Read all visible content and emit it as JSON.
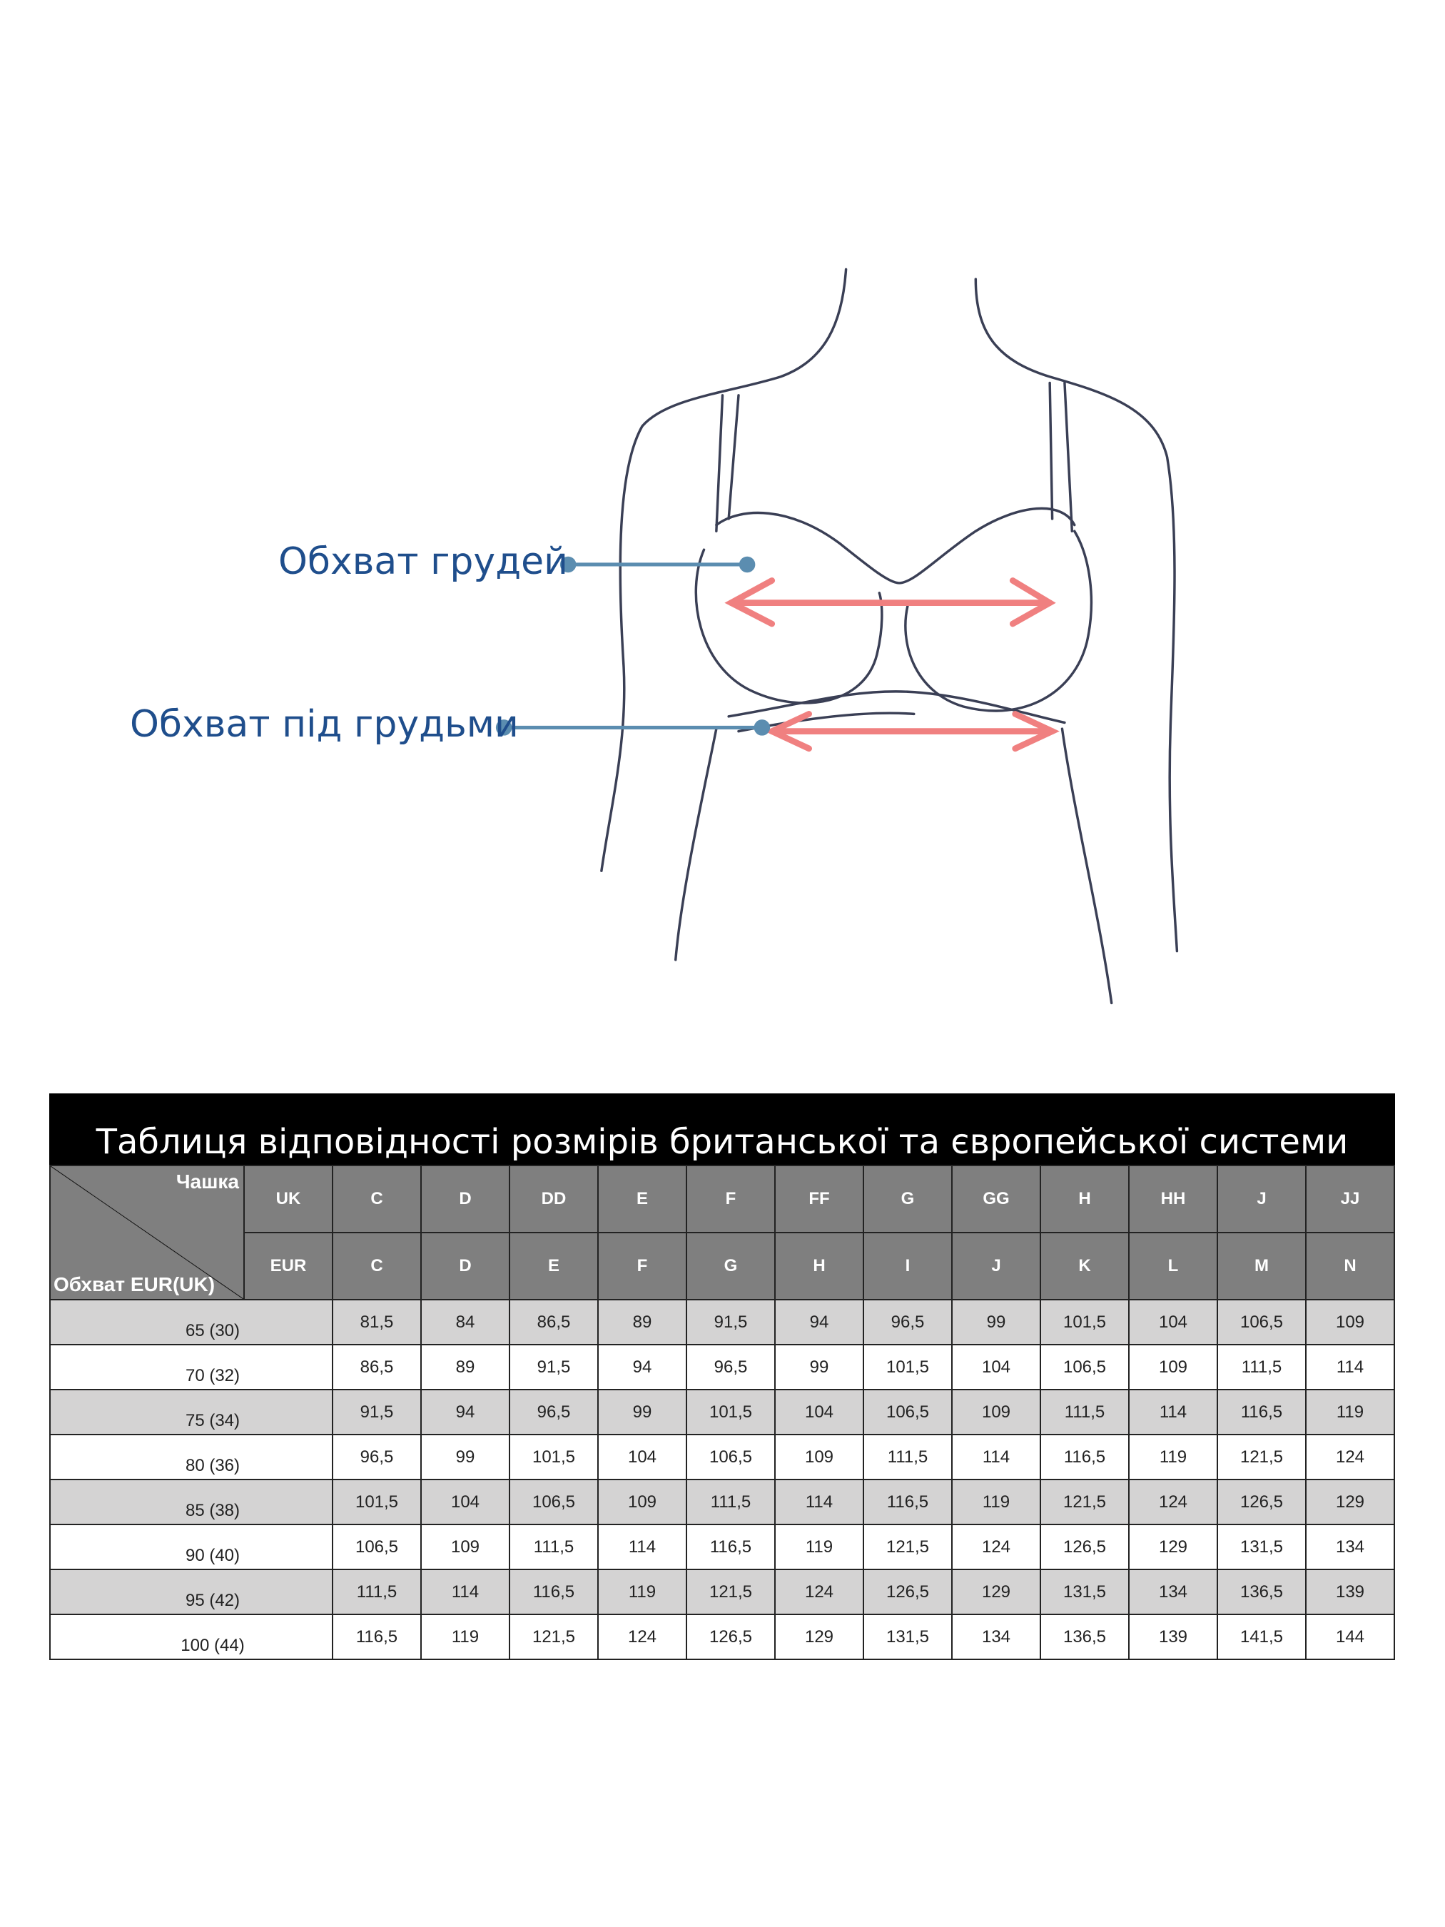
{
  "diagram": {
    "labels": {
      "bust": "Обхват грудей",
      "underbust": "Обхват під грудьми"
    },
    "colors": {
      "label": "#1f4e8c",
      "pointer": "#5b8db0",
      "arrow": "#f08080",
      "sketch": "#3a3f55"
    }
  },
  "table": {
    "title": "Таблиця відповідності розмірів британської та європейської системи",
    "corner_top": "Чашка",
    "corner_bottom": "Обхват EUR(UK)",
    "uk_label": "UK",
    "eur_label": "EUR",
    "uk_cups": [
      "C",
      "D",
      "DD",
      "E",
      "F",
      "FF",
      "G",
      "GG",
      "H",
      "HH",
      "J",
      "JJ"
    ],
    "eur_cups": [
      "C",
      "D",
      "E",
      "F",
      "G",
      "H",
      "I",
      "J",
      "K",
      "L",
      "M",
      "N"
    ],
    "rows": [
      {
        "band": "65 (30)",
        "values": [
          "81,5",
          "84",
          "86,5",
          "89",
          "91,5",
          "94",
          "96,5",
          "99",
          "101,5",
          "104",
          "106,5",
          "109"
        ]
      },
      {
        "band": "70 (32)",
        "values": [
          "86,5",
          "89",
          "91,5",
          "94",
          "96,5",
          "99",
          "101,5",
          "104",
          "106,5",
          "109",
          "111,5",
          "114"
        ]
      },
      {
        "band": "75 (34)",
        "values": [
          "91,5",
          "94",
          "96,5",
          "99",
          "101,5",
          "104",
          "106,5",
          "109",
          "111,5",
          "114",
          "116,5",
          "119"
        ]
      },
      {
        "band": "80 (36)",
        "values": [
          "96,5",
          "99",
          "101,5",
          "104",
          "106,5",
          "109",
          "111,5",
          "114",
          "116,5",
          "119",
          "121,5",
          "124"
        ]
      },
      {
        "band": "85 (38)",
        "values": [
          "101,5",
          "104",
          "106,5",
          "109",
          "111,5",
          "114",
          "116,5",
          "119",
          "121,5",
          "124",
          "126,5",
          "129"
        ]
      },
      {
        "band": "90 (40)",
        "values": [
          "106,5",
          "109",
          "111,5",
          "114",
          "116,5",
          "119",
          "121,5",
          "124",
          "126,5",
          "129",
          "131,5",
          "134"
        ]
      },
      {
        "band": "95 (42)",
        "values": [
          "111,5",
          "114",
          "116,5",
          "119",
          "121,5",
          "124",
          "126,5",
          "129",
          "131,5",
          "134",
          "136,5",
          "139"
        ]
      },
      {
        "band": "100 (44)",
        "values": [
          "116,5",
          "119",
          "121,5",
          "124",
          "126,5",
          "129",
          "131,5",
          "134",
          "136,5",
          "139",
          "141,5",
          "144"
        ]
      }
    ]
  }
}
